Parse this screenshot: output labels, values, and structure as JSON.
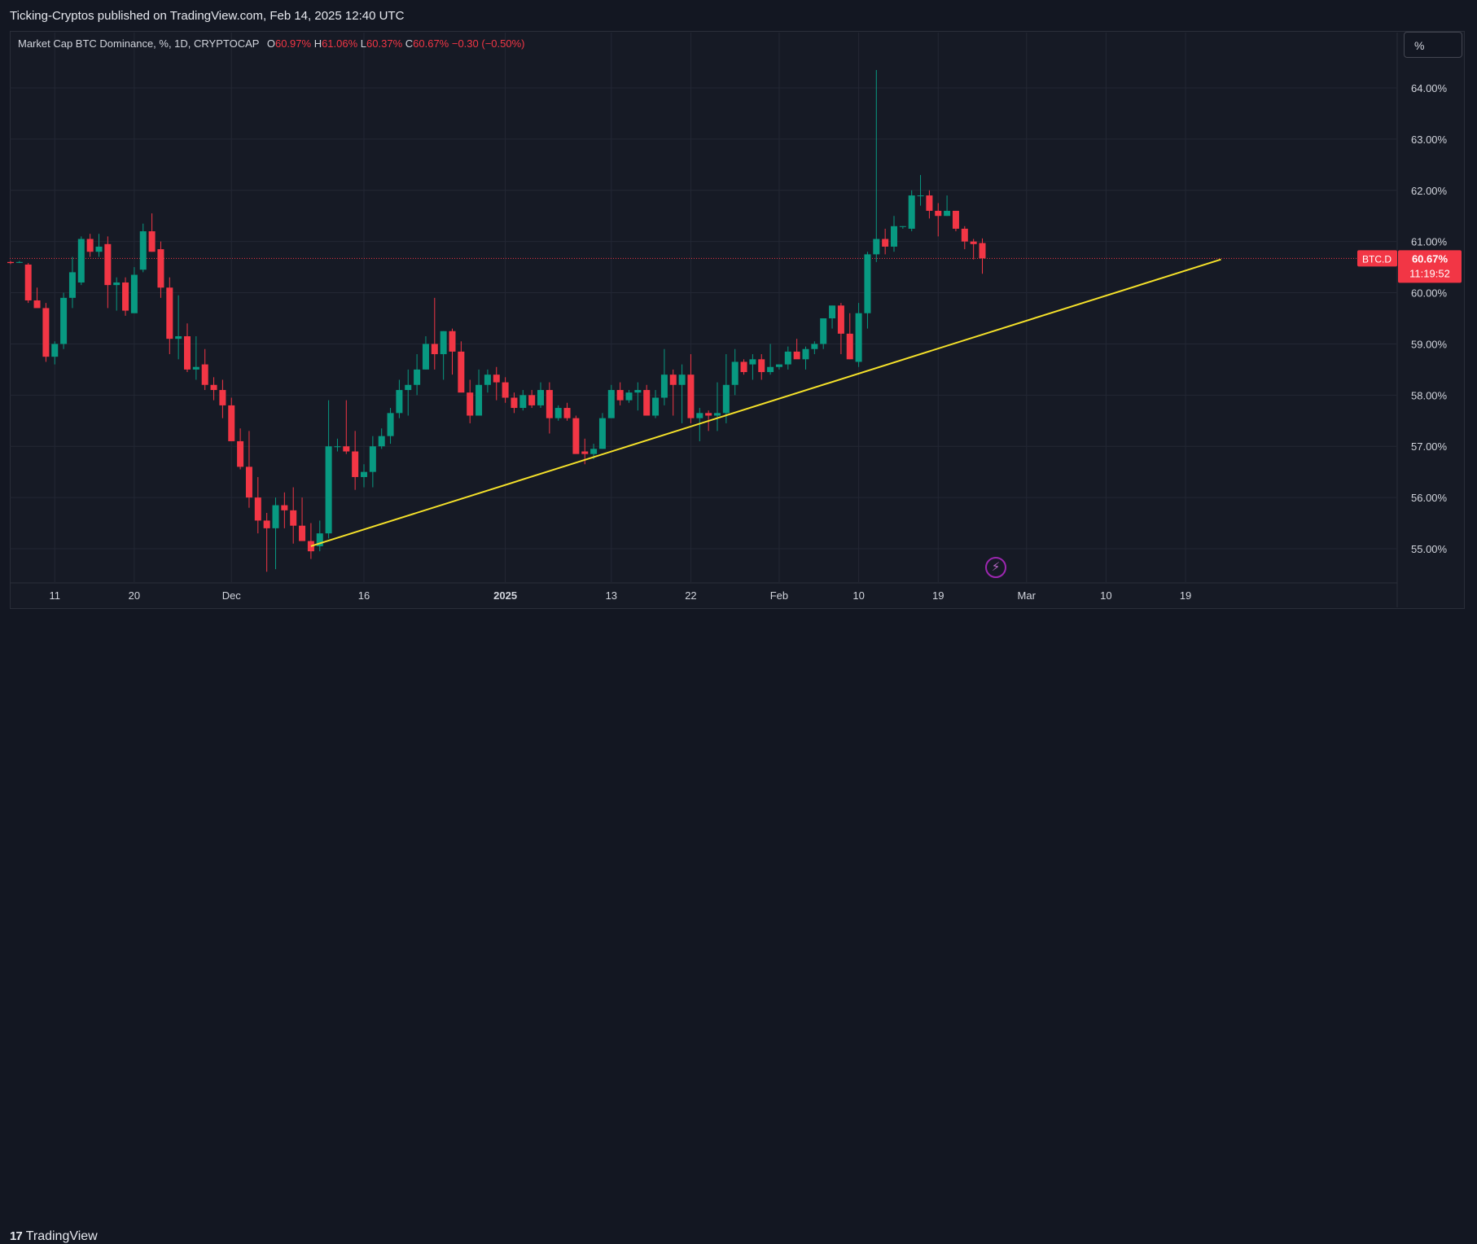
{
  "header": {
    "publish_line": "Ticking-Cryptos published on TradingView.com, Feb 14, 2025 12:40 UTC"
  },
  "legend": {
    "symbol_line": "Market Cap BTC Dominance, %, 1D, CRYPTOCAP",
    "open_label": "O",
    "open_value": "60.97%",
    "high_label": "H",
    "high_value": "61.06%",
    "low_label": "L",
    "low_value": "60.37%",
    "close_label": "C",
    "close_value": "60.67%",
    "change": "−0.30 (−0.50%)"
  },
  "toolbar": {
    "unit_button": "%"
  },
  "price_tag": {
    "symbol": "BTC.D",
    "price": "60.67%",
    "countdown": "11:19:52"
  },
  "footer": {
    "brand": "TradingView",
    "brand_mark": "17"
  },
  "icons": {
    "flash": "lightning-icon",
    "logo": "tradingview-logo-icon"
  },
  "colors": {
    "up": "#089981",
    "down": "#f23645",
    "trendline": "#f5e12a",
    "background": "#161a25",
    "grid": "#232734",
    "price_line": "#f23645"
  },
  "chart_data": {
    "type": "candlestick",
    "title": "Market Cap BTC Dominance, %, 1D, CRYPTOCAP",
    "ylabel": "%",
    "ylim": [
      54.5,
      64.5
    ],
    "y_ticks": [
      "55.00%",
      "56.00%",
      "57.00%",
      "58.00%",
      "59.00%",
      "60.00%",
      "61.00%",
      "62.00%",
      "63.00%",
      "64.00%"
    ],
    "x_ticks": [
      {
        "label": "11",
        "bar": 5
      },
      {
        "label": "20",
        "bar": 14
      },
      {
        "label": "Dec",
        "bar": 25
      },
      {
        "label": "16",
        "bar": 40
      },
      {
        "label": "2025",
        "bar": 56,
        "bold": true
      },
      {
        "label": "13",
        "bar": 68
      },
      {
        "label": "22",
        "bar": 77
      },
      {
        "label": "Feb",
        "bar": 87
      },
      {
        "label": "10",
        "bar": 96
      },
      {
        "label": "19",
        "bar": 105
      },
      {
        "label": "Mar",
        "bar": 115
      },
      {
        "label": "10",
        "bar": 124
      },
      {
        "label": "19",
        "bar": 133
      }
    ],
    "bars": [
      [
        60.6,
        60.62,
        60.56,
        60.58
      ],
      [
        60.6,
        60.62,
        60.58,
        60.6
      ],
      [
        60.55,
        60.58,
        59.8,
        59.85
      ],
      [
        59.85,
        60.1,
        59.75,
        59.7
      ],
      [
        59.7,
        59.8,
        58.65,
        58.75
      ],
      [
        58.75,
        59.05,
        58.6,
        59.0
      ],
      [
        59.0,
        60.0,
        58.9,
        59.9
      ],
      [
        59.9,
        60.7,
        59.7,
        60.4
      ],
      [
        60.2,
        61.1,
        60.15,
        61.05
      ],
      [
        61.05,
        61.15,
        60.7,
        60.8
      ],
      [
        60.8,
        61.15,
        60.7,
        60.9
      ],
      [
        60.95,
        61.1,
        59.7,
        60.15
      ],
      [
        60.15,
        60.3,
        59.65,
        60.2
      ],
      [
        60.2,
        60.3,
        59.55,
        59.65
      ],
      [
        59.6,
        60.5,
        59.6,
        60.35
      ],
      [
        60.45,
        61.35,
        60.4,
        61.2
      ],
      [
        61.2,
        61.55,
        60.8,
        60.8
      ],
      [
        60.85,
        61.0,
        59.9,
        60.1
      ],
      [
        60.1,
        60.3,
        58.8,
        59.1
      ],
      [
        59.1,
        59.95,
        58.7,
        59.15
      ],
      [
        59.15,
        59.4,
        58.45,
        58.5
      ],
      [
        58.5,
        59.15,
        58.3,
        58.55
      ],
      [
        58.6,
        58.9,
        58.1,
        58.2
      ],
      [
        58.2,
        58.35,
        57.9,
        58.1
      ],
      [
        58.1,
        58.3,
        57.55,
        57.8
      ],
      [
        57.8,
        57.95,
        57.1,
        57.1
      ],
      [
        57.1,
        57.35,
        56.55,
        56.6
      ],
      [
        56.6,
        57.3,
        55.8,
        56.0
      ],
      [
        56.0,
        56.4,
        55.3,
        55.55
      ],
      [
        55.55,
        55.7,
        54.55,
        55.4
      ],
      [
        55.4,
        56.0,
        54.6,
        55.85
      ],
      [
        55.85,
        56.1,
        55.4,
        55.75
      ],
      [
        55.75,
        56.2,
        55.1,
        55.45
      ],
      [
        55.45,
        56.0,
        55.25,
        55.15
      ],
      [
        55.15,
        55.5,
        54.8,
        54.95
      ],
      [
        55.05,
        55.55,
        54.95,
        55.3
      ],
      [
        55.3,
        57.9,
        55.2,
        57.0
      ],
      [
        57.0,
        57.15,
        56.9,
        57.0
      ],
      [
        57.0,
        57.9,
        56.85,
        56.9
      ],
      [
        56.9,
        57.3,
        56.15,
        56.4
      ],
      [
        56.4,
        56.65,
        56.2,
        56.5
      ],
      [
        56.5,
        57.2,
        56.2,
        57.0
      ],
      [
        57.0,
        57.35,
        56.95,
        57.2
      ],
      [
        57.2,
        57.75,
        57.05,
        57.65
      ],
      [
        57.65,
        58.3,
        57.55,
        58.1
      ],
      [
        58.1,
        58.5,
        57.6,
        58.2
      ],
      [
        58.2,
        58.8,
        58.0,
        58.5
      ],
      [
        58.5,
        59.15,
        58.5,
        59.0
      ],
      [
        59.0,
        59.9,
        58.5,
        58.8
      ],
      [
        58.8,
        59.25,
        58.3,
        59.25
      ],
      [
        59.25,
        59.3,
        58.4,
        58.85
      ],
      [
        58.85,
        59.05,
        58.45,
        58.05
      ],
      [
        58.05,
        58.3,
        57.45,
        57.6
      ],
      [
        57.6,
        58.5,
        57.6,
        58.2
      ],
      [
        58.2,
        58.5,
        58.05,
        58.4
      ],
      [
        58.4,
        58.55,
        57.9,
        58.25
      ],
      [
        58.25,
        58.35,
        57.85,
        57.95
      ],
      [
        57.95,
        58.05,
        57.65,
        57.75
      ],
      [
        57.75,
        58.1,
        57.7,
        58.0
      ],
      [
        58.0,
        58.1,
        57.75,
        57.8
      ],
      [
        57.8,
        58.25,
        57.75,
        58.1
      ],
      [
        58.1,
        58.25,
        57.25,
        57.55
      ],
      [
        57.55,
        57.8,
        57.5,
        57.75
      ],
      [
        57.75,
        57.85,
        57.5,
        57.55
      ],
      [
        57.55,
        57.6,
        56.9,
        56.85
      ],
      [
        56.9,
        57.15,
        56.65,
        56.85
      ],
      [
        56.85,
        57.05,
        56.75,
        56.95
      ],
      [
        56.95,
        57.65,
        56.95,
        57.55
      ],
      [
        57.55,
        58.2,
        57.55,
        58.1
      ],
      [
        58.1,
        58.25,
        57.8,
        57.9
      ],
      [
        57.9,
        58.1,
        57.85,
        58.05
      ],
      [
        58.05,
        58.25,
        57.7,
        58.1
      ],
      [
        58.1,
        58.2,
        57.65,
        57.6
      ],
      [
        57.6,
        58.1,
        57.55,
        57.95
      ],
      [
        57.95,
        58.9,
        57.8,
        58.4
      ],
      [
        58.4,
        58.5,
        57.6,
        58.2
      ],
      [
        58.2,
        58.6,
        57.45,
        58.4
      ],
      [
        58.4,
        58.8,
        57.45,
        57.55
      ],
      [
        57.55,
        57.75,
        57.1,
        57.65
      ],
      [
        57.65,
        57.7,
        57.3,
        57.6
      ],
      [
        57.6,
        58.25,
        57.3,
        57.65
      ],
      [
        57.65,
        58.8,
        57.45,
        58.2
      ],
      [
        58.2,
        58.9,
        58.0,
        58.65
      ],
      [
        58.65,
        58.7,
        58.4,
        58.45
      ],
      [
        58.6,
        58.8,
        58.3,
        58.7
      ],
      [
        58.7,
        58.8,
        58.3,
        58.45
      ],
      [
        58.45,
        59.0,
        58.4,
        58.55
      ],
      [
        58.55,
        58.6,
        58.5,
        58.6
      ],
      [
        58.6,
        58.95,
        58.5,
        58.85
      ],
      [
        58.85,
        59.1,
        58.75,
        58.7
      ],
      [
        58.7,
        58.95,
        58.5,
        58.9
      ],
      [
        58.9,
        59.05,
        58.8,
        59.0
      ],
      [
        59.0,
        59.5,
        58.9,
        59.5
      ],
      [
        59.5,
        59.75,
        59.3,
        59.75
      ],
      [
        59.75,
        59.8,
        58.8,
        59.2
      ],
      [
        59.2,
        59.6,
        58.7,
        58.7
      ],
      [
        58.65,
        59.8,
        58.55,
        59.6
      ],
      [
        59.6,
        60.8,
        59.3,
        60.75
      ],
      [
        60.75,
        64.35,
        60.6,
        61.05
      ],
      [
        61.05,
        61.25,
        60.75,
        60.9
      ],
      [
        60.9,
        61.5,
        60.8,
        61.3
      ],
      [
        61.3,
        61.3,
        61.25,
        61.3
      ],
      [
        61.25,
        62.0,
        61.2,
        61.9
      ],
      [
        61.9,
        62.3,
        61.7,
        61.9
      ],
      [
        61.9,
        62.0,
        61.45,
        61.6
      ],
      [
        61.6,
        61.75,
        61.1,
        61.5
      ],
      [
        61.5,
        61.9,
        61.5,
        61.6
      ],
      [
        61.6,
        61.6,
        61.2,
        61.25
      ],
      [
        61.25,
        61.3,
        60.85,
        61.0
      ],
      [
        61.0,
        61.05,
        60.65,
        60.95
      ],
      [
        60.97,
        61.06,
        60.37,
        60.67
      ]
    ],
    "bar_meta_note": "",
    "trendline": {
      "from": {
        "bar": 34,
        "value": 55.05
      },
      "to": {
        "bar": 137,
        "value": 60.65
      }
    },
    "last_price": 60.67
  }
}
